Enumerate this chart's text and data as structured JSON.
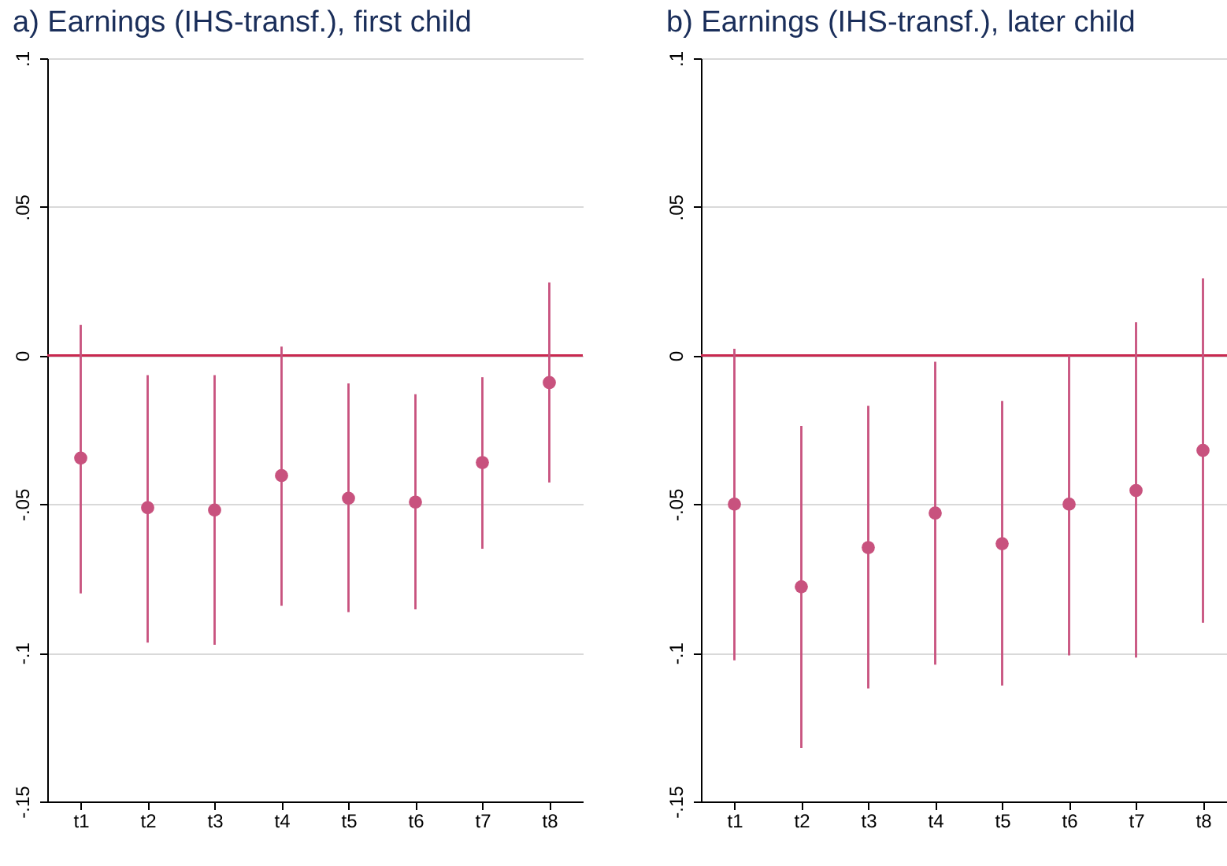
{
  "chart_data": [
    {
      "type": "scatter",
      "title": "a) Earnings (IHS-transf.), first child",
      "categories": [
        "t1",
        "t2",
        "t3",
        "t4",
        "t5",
        "t6",
        "t7",
        "t8"
      ],
      "values": [
        -0.0345,
        -0.0512,
        -0.052,
        -0.0404,
        -0.048,
        -0.0493,
        -0.036,
        -0.0091
      ],
      "color": "#c8527e",
      "errors": [
        [
          -0.08,
          0.0103
        ],
        [
          -0.0966,
          -0.0066
        ],
        [
          -0.0973,
          -0.0066
        ],
        [
          -0.0842,
          0.003
        ],
        [
          -0.0863,
          -0.0094
        ],
        [
          -0.0854,
          -0.013
        ],
        [
          -0.065,
          -0.0073
        ],
        [
          -0.0427,
          0.0246
        ]
      ],
      "ylim": [
        -0.15,
        0.1
      ],
      "yticks": [
        {
          "value": -0.15,
          "label": "-.15"
        },
        {
          "value": -0.1,
          "label": "-.1"
        },
        {
          "value": -0.05,
          "label": "-.05"
        },
        0,
        {
          "value": 0.05,
          "label": ".05"
        },
        {
          "value": 0.1,
          "label": ".1"
        }
      ],
      "grid": "y",
      "marker": "circle",
      "ref_lines": [
        {
          "axis": "y",
          "value": 0,
          "color": "#c8284f"
        }
      ]
    },
    {
      "type": "scatter",
      "title": "b) Earnings (IHS-transf.), later child",
      "categories": [
        "t1",
        "t2",
        "t3",
        "t4",
        "t5",
        "t6",
        "t7",
        "t8"
      ],
      "values": [
        -0.05,
        -0.0778,
        -0.0646,
        -0.053,
        -0.0633,
        -0.05,
        -0.0454,
        -0.0319
      ],
      "color": "#c8527e",
      "errors": [
        [
          -0.1025,
          0.0023
        ],
        [
          -0.132,
          -0.0237
        ],
        [
          -0.112,
          -0.0169
        ],
        [
          -0.104,
          -0.0021
        ],
        [
          -0.111,
          -0.0153
        ],
        [
          -0.1009,
          0
        ],
        [
          -0.1016,
          0.0112
        ],
        [
          -0.0899,
          0.026
        ]
      ],
      "ylim": [
        -0.15,
        0.1
      ],
      "yticks": [
        {
          "value": -0.15,
          "label": "-.15"
        },
        {
          "value": -0.1,
          "label": "-.1"
        },
        {
          "value": -0.05,
          "label": "-.05"
        },
        0,
        {
          "value": 0.05,
          "label": ".05"
        },
        {
          "value": 0.1,
          "label": ".1"
        }
      ],
      "grid": "y",
      "marker": "circle",
      "ref_lines": [
        {
          "axis": "y",
          "value": 0,
          "color": "#c8284f"
        }
      ]
    }
  ]
}
